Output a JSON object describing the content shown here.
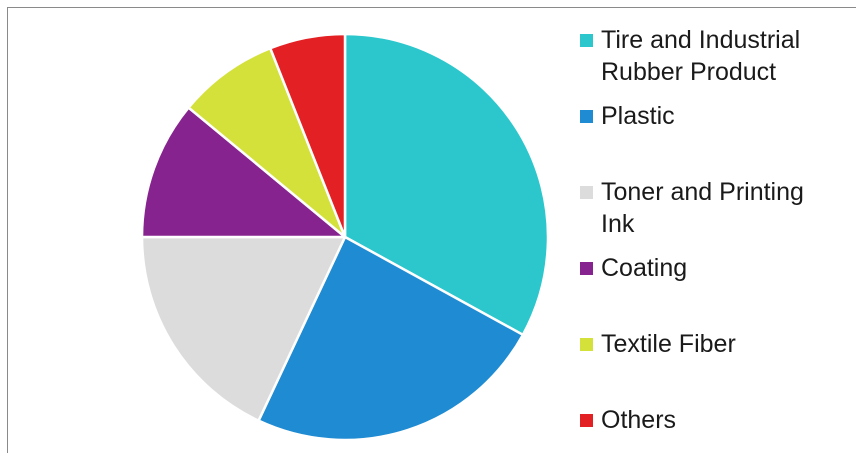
{
  "chart_data": {
    "type": "pie",
    "title": "",
    "categories": [
      "Tire and Industrial Rubber Product",
      "Plastic",
      "Toner and Printing Ink",
      "Coating",
      "Textile Fiber",
      "Others"
    ],
    "values": [
      33,
      24,
      18,
      11,
      8,
      6
    ],
    "colors": [
      "#2bc7cc",
      "#1f8bd2",
      "#dcdcdc",
      "#87238f",
      "#d4e13a",
      "#e32124"
    ],
    "legend_position": "right",
    "legend_lines": [
      [
        "Tire and Industrial",
        "Rubber Product"
      ],
      [
        "Plastic"
      ],
      [
        "Toner and Printing",
        "Ink"
      ],
      [
        "Coating"
      ],
      [
        "Textile Fiber"
      ],
      [
        "Others"
      ]
    ]
  }
}
